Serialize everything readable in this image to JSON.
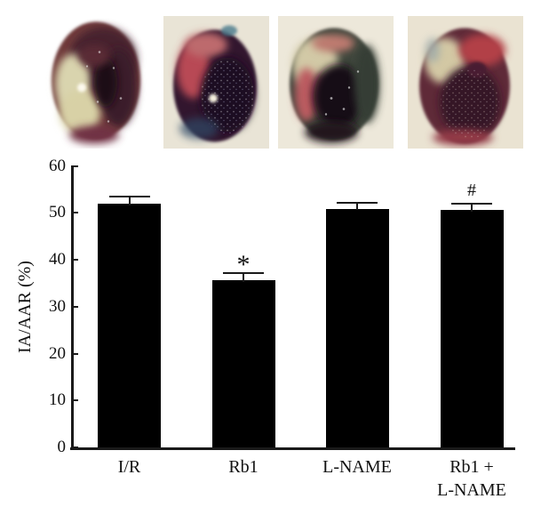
{
  "photos": [
    {
      "name": "heart-section-photo-1",
      "background": "#ffffff"
    },
    {
      "name": "heart-section-photo-2",
      "background": "#e9e4d6"
    },
    {
      "name": "heart-section-photo-3",
      "background": "#ede8da"
    },
    {
      "name": "heart-section-photo-4",
      "background": "#eae3d2"
    }
  ],
  "chart_data": {
    "type": "bar",
    "title": "",
    "ylabel": "IA/AAR (%)",
    "xlabel": "",
    "ylim": [
      0,
      60
    ],
    "yticks": [
      0,
      10,
      20,
      30,
      40,
      50,
      60
    ],
    "grid": false,
    "legend": null,
    "bar_color": "#000000",
    "categories": [
      "I/R",
      "Rb1",
      "L-NAME",
      "Rb1 + L-NAME"
    ],
    "category_label_lines": [
      [
        "I/R"
      ],
      [
        "Rb1"
      ],
      [
        "L-NAME"
      ],
      [
        "Rb1 +",
        "L-NAME"
      ]
    ],
    "values": [
      52,
      35.7,
      50.9,
      50.6
    ],
    "errors": [
      1.5,
      1.5,
      1.3,
      1.4
    ],
    "annotations": [
      "",
      "*",
      "",
      "#"
    ]
  }
}
